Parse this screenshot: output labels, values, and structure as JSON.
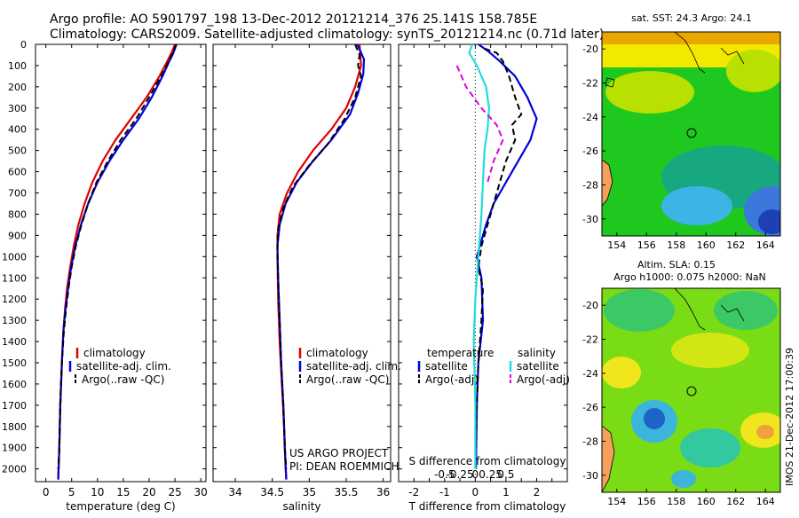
{
  "header": {
    "title_line1": "Argo profile: AO 5901797_198 13-Dec-2012 20121214_376 25.141S 158.785E",
    "title_line2": "Climatology: CARS2009. Satellite-adjusted climatology: synTS_20121214.nc (0.71d later)"
  },
  "colors": {
    "climatology": "#e00000",
    "satellite": "#0000dd",
    "argo": "#000000",
    "salinity_satellite": "#22dddd",
    "salinity_argo": "#e000e0"
  },
  "chart_data": [
    {
      "id": "temperature",
      "type": "line",
      "xlabel": "temperature (deg C)",
      "xlim": [
        -2,
        31
      ],
      "xticks": [
        0,
        5,
        10,
        15,
        20,
        25,
        30
      ],
      "ylim": [
        2060,
        0
      ],
      "yticks": [
        0,
        100,
        200,
        300,
        400,
        500,
        600,
        700,
        800,
        900,
        1000,
        1100,
        1200,
        1300,
        1400,
        1500,
        1600,
        1700,
        1800,
        1900,
        2000
      ],
      "legend": [
        "climatology",
        "satellite-adj. clim.",
        "Argo(..raw -QC)"
      ],
      "series": [
        {
          "name": "climatology",
          "color": "#e00000",
          "points": [
            [
              25,
              0
            ],
            [
              24.5,
              30
            ],
            [
              23.5,
              80
            ],
            [
              22,
              150
            ],
            [
              19.5,
              250
            ],
            [
              16.5,
              350
            ],
            [
              13.5,
              450
            ],
            [
              11,
              550
            ],
            [
              9,
              650
            ],
            [
              7.5,
              750
            ],
            [
              6.3,
              850
            ],
            [
              5.4,
              950
            ],
            [
              4.7,
              1050
            ],
            [
              4.1,
              1150
            ],
            [
              3.7,
              1250
            ],
            [
              3.4,
              1350
            ],
            [
              3.1,
              1500
            ],
            [
              2.8,
              1700
            ],
            [
              2.6,
              1900
            ],
            [
              2.4,
              2050
            ]
          ]
        },
        {
          "name": "satellite-adj. clim.",
          "color": "#0000dd",
          "points": [
            [
              25.3,
              0
            ],
            [
              24.7,
              40
            ],
            [
              23.7,
              90
            ],
            [
              22.6,
              150
            ],
            [
              20.5,
              250
            ],
            [
              18,
              350
            ],
            [
              15,
              450
            ],
            [
              12.3,
              550
            ],
            [
              10,
              650
            ],
            [
              8.2,
              750
            ],
            [
              6.8,
              850
            ],
            [
              5.7,
              950
            ],
            [
              4.9,
              1050
            ],
            [
              4.3,
              1150
            ],
            [
              3.8,
              1250
            ],
            [
              3.4,
              1350
            ],
            [
              3.1,
              1500
            ],
            [
              2.8,
              1700
            ],
            [
              2.6,
              1900
            ],
            [
              2.4,
              2050
            ]
          ]
        },
        {
          "name": "Argo(..raw -QC)",
          "color": "#000000",
          "dashed": true,
          "points": [
            [
              25.2,
              0
            ],
            [
              24.6,
              40
            ],
            [
              23.6,
              90
            ],
            [
              22.3,
              150
            ],
            [
              20,
              250
            ],
            [
              17.5,
              350
            ],
            [
              14.5,
              450
            ],
            [
              12,
              550
            ],
            [
              9.8,
              650
            ],
            [
              8.2,
              750
            ],
            [
              6.9,
              850
            ],
            [
              5.8,
              950
            ],
            [
              5,
              1050
            ],
            [
              4.4,
              1150
            ],
            [
              3.9,
              1250
            ],
            [
              3.5,
              1350
            ],
            [
              3.1,
              1500
            ],
            [
              2.8,
              1700
            ],
            [
              2.6,
              1900
            ],
            [
              2.4,
              2000
            ]
          ]
        }
      ]
    },
    {
      "id": "salinity",
      "type": "line",
      "xlabel": "salinity",
      "xlim": [
        33.7,
        36.1
      ],
      "xticks": [
        34,
        34.5,
        35,
        35.5,
        36
      ],
      "ylim": [
        2060,
        0
      ],
      "legend": [
        "climatology",
        "satellite-adj. clim.",
        "Argo(..raw -QC)"
      ],
      "annotation": [
        "US ARGO PROJECT",
        "PI: DEAN ROEMMICH"
      ],
      "series": [
        {
          "name": "climatology",
          "color": "#e00000",
          "points": [
            [
              35.68,
              0
            ],
            [
              35.7,
              100
            ],
            [
              35.62,
              200
            ],
            [
              35.5,
              300
            ],
            [
              35.3,
              400
            ],
            [
              35.05,
              500
            ],
            [
              34.85,
              600
            ],
            [
              34.7,
              700
            ],
            [
              34.6,
              800
            ],
            [
              34.57,
              900
            ],
            [
              34.57,
              1000
            ],
            [
              34.58,
              1200
            ],
            [
              34.6,
              1400
            ],
            [
              34.63,
              1600
            ],
            [
              34.66,
              1800
            ],
            [
              34.68,
              2000
            ],
            [
              34.69,
              2050
            ]
          ]
        },
        {
          "name": "satellite-adj. clim.",
          "color": "#0000dd",
          "points": [
            [
              35.65,
              0
            ],
            [
              35.74,
              70
            ],
            [
              35.73,
              140
            ],
            [
              35.66,
              230
            ],
            [
              35.55,
              330
            ],
            [
              35.3,
              450
            ],
            [
              35.05,
              550
            ],
            [
              34.83,
              650
            ],
            [
              34.68,
              750
            ],
            [
              34.6,
              850
            ],
            [
              34.57,
              950
            ],
            [
              34.58,
              1100
            ],
            [
              34.6,
              1300
            ],
            [
              34.62,
              1500
            ],
            [
              34.65,
              1700
            ],
            [
              34.67,
              1900
            ],
            [
              34.69,
              2050
            ]
          ]
        },
        {
          "name": "Argo(..raw -QC)",
          "color": "#000000",
          "dashed": true,
          "points": [
            [
              35.62,
              0
            ],
            [
              35.68,
              50
            ],
            [
              35.66,
              100
            ],
            [
              35.7,
              150
            ],
            [
              35.62,
              250
            ],
            [
              35.48,
              350
            ],
            [
              35.25,
              470
            ],
            [
              35,
              570
            ],
            [
              34.78,
              670
            ],
            [
              34.65,
              770
            ],
            [
              34.58,
              870
            ],
            [
              34.57,
              970
            ],
            [
              34.58,
              1100
            ],
            [
              34.6,
              1300
            ],
            [
              34.62,
              1500
            ],
            [
              34.65,
              1700
            ],
            [
              34.67,
              1900
            ],
            [
              34.69,
              2000
            ]
          ]
        }
      ]
    },
    {
      "id": "difference",
      "type": "line",
      "xlabel": "T difference from climatology",
      "xlabel2": "S difference from climatology",
      "xlim": [
        -2.5,
        3
      ],
      "xticks": [
        -2,
        -1.5,
        -1,
        -0.5,
        0,
        0.5,
        1,
        1.5,
        2,
        2.5
      ],
      "xtick_labels": [
        "-2",
        "-1",
        "0",
        "1",
        "2"
      ],
      "xtick_label_values": [
        -2,
        -1,
        0,
        1,
        2
      ],
      "xticks2_labels": [
        "-0.5",
        "-0.25",
        "0",
        "0.25",
        "0.5"
      ],
      "xticks2_positions": [
        -1,
        -0.5,
        0,
        0.5,
        1
      ],
      "ylim": [
        2060,
        0
      ],
      "legend_temperature": {
        "title": "temperature",
        "entries": [
          "satellite",
          "Argo(-adj)"
        ]
      },
      "legend_salinity": {
        "title": "salinity",
        "entries": [
          "satellite",
          "Argo(-adj)"
        ]
      },
      "series": [
        {
          "name": "temperature satellite",
          "color": "#0000dd",
          "points": [
            [
              0.1,
              0
            ],
            [
              0.4,
              30
            ],
            [
              0.8,
              80
            ],
            [
              1.3,
              150
            ],
            [
              1.7,
              250
            ],
            [
              2.0,
              350
            ],
            [
              1.8,
              450
            ],
            [
              1.4,
              550
            ],
            [
              1.0,
              650
            ],
            [
              0.6,
              750
            ],
            [
              0.35,
              850
            ],
            [
              0.15,
              950
            ],
            [
              0.05,
              1000
            ],
            [
              0.2,
              1100
            ],
            [
              0.25,
              1300
            ],
            [
              0.1,
              1500
            ],
            [
              0.05,
              1700
            ],
            [
              0.02,
              2000
            ]
          ]
        },
        {
          "name": "temperature Argo(-adj)",
          "color": "#000000",
          "dashed": true,
          "points": [
            [
              0.3,
              20
            ],
            [
              0.7,
              40
            ],
            [
              0.9,
              80
            ],
            [
              1.1,
              150
            ],
            [
              1.3,
              250
            ],
            [
              1.5,
              330
            ],
            [
              1.2,
              380
            ],
            [
              1.3,
              450
            ],
            [
              1.0,
              550
            ],
            [
              0.8,
              650
            ],
            [
              0.6,
              750
            ],
            [
              0.4,
              850
            ],
            [
              0.2,
              950
            ],
            [
              0.1,
              1050
            ],
            [
              0.25,
              1150
            ],
            [
              0.2,
              1300
            ],
            [
              0.1,
              1500
            ],
            [
              0.05,
              1700
            ],
            [
              0.02,
              1900
            ]
          ]
        },
        {
          "name": "salinity satellite",
          "color": "#22dddd",
          "points": [
            [
              -0.1,
              0
            ],
            [
              -0.2,
              40
            ],
            [
              0.05,
              100
            ],
            [
              0.35,
              200
            ],
            [
              0.45,
              300
            ],
            [
              0.4,
              400
            ],
            [
              0.3,
              500
            ],
            [
              0.25,
              650
            ],
            [
              0.2,
              800
            ],
            [
              0.1,
              1000
            ],
            [
              0,
              1200
            ],
            [
              -0.05,
              1400
            ],
            [
              0,
              1700
            ],
            [
              0,
              2000
            ]
          ]
        },
        {
          "name": "salinity Argo(-adj)",
          "color": "#e000e0",
          "dashed": true,
          "points": [
            [
              -0.6,
              100
            ],
            [
              -0.3,
              200
            ],
            [
              0.2,
              300
            ],
            [
              0.7,
              380
            ],
            [
              0.9,
              450
            ],
            [
              0.6,
              550
            ],
            [
              0.4,
              650
            ]
          ]
        }
      ]
    }
  ],
  "maps": {
    "sst": {
      "title": "sat. SST: 24.3  Argo: 24.1",
      "xticks": [
        "154",
        "156",
        "158",
        "160",
        "162",
        "164"
      ],
      "yticks": [
        "-20",
        "-22",
        "-24",
        "-26",
        "-28",
        "-30"
      ]
    },
    "sla": {
      "title_line1": "Altim. SLA: 0.15",
      "title_line2": "Argo h1000: 0.075 h2000: NaN",
      "xticks": [
        "154",
        "156",
        "158",
        "160",
        "162",
        "164"
      ],
      "yticks": [
        "-20",
        "-22",
        "-24",
        "-26",
        "-28",
        "-30"
      ]
    }
  },
  "footer": {
    "vertical_stamp": "IMOS 21-Dec-2012 17:00:39"
  }
}
